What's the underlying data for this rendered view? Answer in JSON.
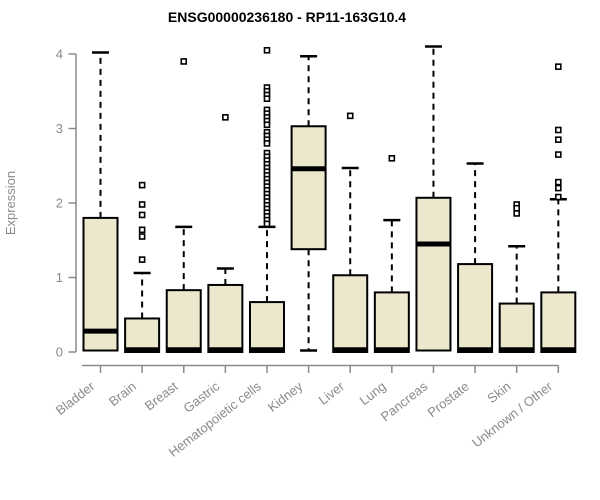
{
  "chart_data": {
    "type": "boxplot",
    "title": "ENSG00000236180 - RP11-163G10.4",
    "ylabel": "Expression",
    "xlabel": "",
    "ylim": [
      0,
      4
    ],
    "yticks": [
      0,
      1,
      2,
      3,
      4
    ],
    "grid": false,
    "legend": false,
    "categories": [
      "Bladder",
      "Brain",
      "Breast",
      "Gastric",
      "Hematopoietic cells",
      "Kidney",
      "Liver",
      "Lung",
      "Pancreas",
      "Prostate",
      "Skin",
      "Unknown / Other"
    ],
    "series": [
      {
        "category": "Bladder",
        "low": 0.02,
        "q1": 0.02,
        "median": 0.28,
        "q3": 1.8,
        "high": 4.02,
        "outliers": []
      },
      {
        "category": "Brain",
        "low": 0,
        "q1": 0,
        "median": 0.03,
        "q3": 0.45,
        "high": 1.06,
        "outliers": [
          2.24,
          1.98,
          1.84,
          1.64,
          1.55,
          1.24
        ]
      },
      {
        "category": "Breast",
        "low": 0,
        "q1": 0,
        "median": 0.03,
        "q3": 0.83,
        "high": 1.68,
        "outliers": [
          3.9
        ]
      },
      {
        "category": "Gastric",
        "low": 0,
        "q1": 0,
        "median": 0.03,
        "q3": 0.9,
        "high": 1.12,
        "outliers": [
          3.15
        ]
      },
      {
        "category": "Hematopoietic cells",
        "low": 0,
        "q1": 0,
        "median": 0.03,
        "q3": 0.67,
        "high": 1.68,
        "outliers": [
          4.05,
          3.55,
          3.5,
          3.45,
          3.4,
          3.25,
          3.2,
          3.15,
          3.1,
          3.05,
          2.95,
          2.9,
          2.85,
          2.8,
          2.67,
          2.62,
          2.57,
          2.52,
          2.47,
          2.42,
          2.37,
          2.32,
          2.27,
          2.22,
          2.17,
          2.12,
          2.07,
          2.02,
          1.97,
          1.92,
          1.87,
          1.82,
          1.77,
          1.72
        ]
      },
      {
        "category": "Kidney",
        "low": 0.02,
        "q1": 1.38,
        "median": 2.46,
        "q3": 3.03,
        "high": 3.97,
        "outliers": []
      },
      {
        "category": "Liver",
        "low": 0,
        "q1": 0,
        "median": 0.03,
        "q3": 1.03,
        "high": 2.47,
        "outliers": [
          3.17
        ]
      },
      {
        "category": "Lung",
        "low": 0,
        "q1": 0,
        "median": 0.03,
        "q3": 0.8,
        "high": 1.77,
        "outliers": [
          2.6
        ]
      },
      {
        "category": "Pancreas",
        "low": 0.02,
        "q1": 0.02,
        "median": 1.45,
        "q3": 2.07,
        "high": 4.1,
        "outliers": []
      },
      {
        "category": "Prostate",
        "low": 0,
        "q1": 0,
        "median": 0.03,
        "q3": 1.18,
        "high": 2.53,
        "outliers": []
      },
      {
        "category": "Skin",
        "low": 0,
        "q1": 0,
        "median": 0.03,
        "q3": 0.65,
        "high": 1.42,
        "outliers": [
          1.98,
          1.93,
          1.86
        ]
      },
      {
        "category": "Unknown / Other",
        "low": 0,
        "q1": 0,
        "median": 0.03,
        "q3": 0.8,
        "high": 2.05,
        "outliers": [
          3.83,
          2.98,
          2.85,
          2.65,
          2.28,
          2.2,
          2.08
        ]
      }
    ],
    "style": {
      "box_fill": "#ece8cd",
      "box_stroke": "#000000",
      "median_color": "#000000",
      "whisker_color": "#000000",
      "outlier_stroke": "#000000",
      "outlier_fill": "#ffffff",
      "axis_color": "#8a8a8a",
      "tick_label_color": "#8a8a8a",
      "title_color": "#000000",
      "background": "#ffffff"
    }
  }
}
